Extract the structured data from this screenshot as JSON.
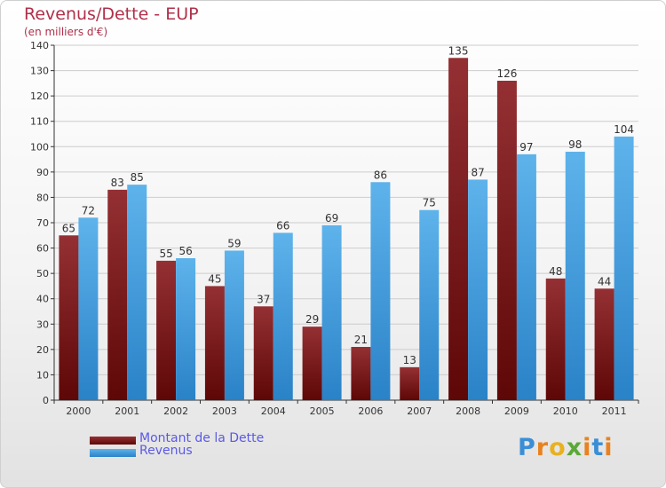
{
  "header": {
    "title": "Revenus/Dette - EUP",
    "subtitle": "(en milliers d'€)"
  },
  "legend": {
    "items": [
      {
        "label": "Montant de la Dette",
        "color": "#7a1515"
      },
      {
        "label": "Revenus",
        "color": "#3d9ee0"
      }
    ]
  },
  "logo": {
    "text": "Proxiti",
    "letter_colors": [
      "#3b8ed6",
      "#e8821f",
      "#e8b21f",
      "#5aa838",
      "#e8821f",
      "#3b8ed6",
      "#e8821f"
    ]
  },
  "colors": {
    "dette": "#7a1515",
    "revenus": "#3d9ee0",
    "axis": "#333333",
    "grid": "#cccccc"
  },
  "chart_data": {
    "type": "bar",
    "title": "Revenus/Dette - EUP",
    "subtitle": "(en milliers d'€)",
    "categories": [
      "2000",
      "2001",
      "2002",
      "2003",
      "2004",
      "2005",
      "2006",
      "2007",
      "2008",
      "2009",
      "2010",
      "2011"
    ],
    "series": [
      {
        "name": "Montant de la Dette",
        "values": [
          65,
          83,
          55,
          45,
          37,
          29,
          21,
          13,
          135,
          126,
          48,
          44
        ]
      },
      {
        "name": "Revenus",
        "values": [
          72,
          85,
          56,
          59,
          66,
          69,
          86,
          75,
          87,
          97,
          98,
          104
        ]
      }
    ],
    "ylim": [
      0,
      140
    ],
    "yticks": [
      0,
      10,
      20,
      30,
      40,
      50,
      60,
      70,
      80,
      90,
      100,
      110,
      120,
      130,
      140
    ],
    "grid": true,
    "legend_position": "bottom-left"
  }
}
